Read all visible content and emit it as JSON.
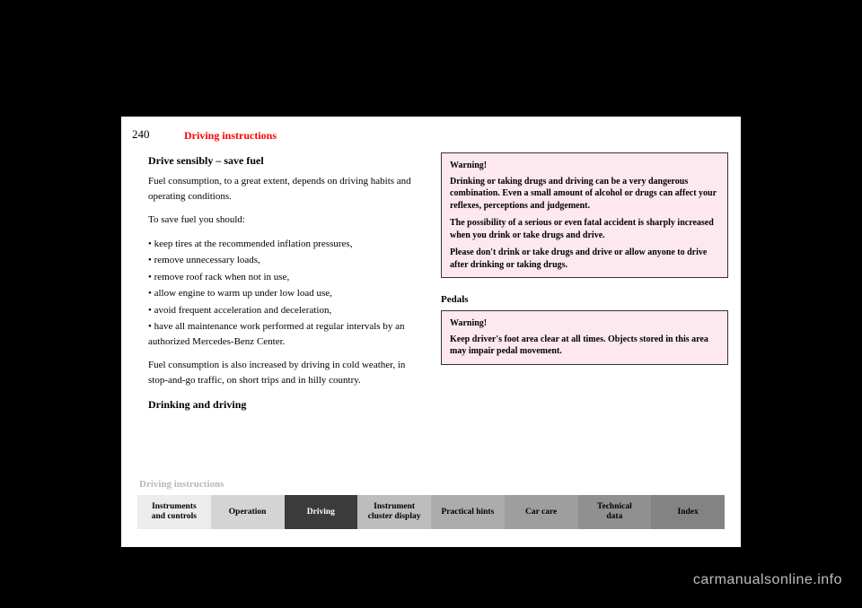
{
  "page_number": "240",
  "header_title": "Driving instructions",
  "left_column": {
    "heading": "Drive sensibly – save fuel",
    "p1": "Fuel consumption, to a great extent, depends on driving habits and operating conditions.",
    "p2": "To save fuel you should:",
    "bullets_intro": "",
    "li1": "• keep tires at the recommended inflation pressures,",
    "li2": "• remove unnecessary loads,",
    "li3": "• remove roof rack when not in use,",
    "li4": "• allow engine to warm up under low load use,",
    "li5": "• avoid frequent acceleration and deceleration,",
    "li6": "• have all maintenance work performed at regular intervals by an authorized Mercedes-Benz Center.",
    "p3": "Fuel consumption is also increased by driving in cold weather, in stop-and-go traffic, on short trips and in hilly country.",
    "h2": "Drinking and driving"
  },
  "warning1": {
    "title": "Warning!",
    "p1": "Drinking or taking drugs and driving can be a very dangerous combination. Even a small amount of alcohol or drugs can affect your reflexes, perceptions and judgement.",
    "p2": "The possibility of a serious or even fatal accident is sharply increased when you drink or take drugs and drive.",
    "p3": "Please don't drink or take drugs and drive or allow anyone to drive after drinking or taking drugs."
  },
  "pedals_title": "Pedals",
  "warning2": {
    "title": "Warning!",
    "p1": "Keep driver's foot area clear at all times. Objects stored in this area may impair pedal movement."
  },
  "footer_label": "Driving instructions",
  "tabs": [
    {
      "label": "Instruments\nand controls",
      "bg": "#ececec"
    },
    {
      "label": "Operation",
      "bg": "#d4d4d4"
    },
    {
      "label": "Driving",
      "bg": "#3b3b3b",
      "fg": "#fff"
    },
    {
      "label": "Instrument\ncluster display",
      "bg": "#bdbdbd"
    },
    {
      "label": "Practical hints",
      "bg": "#acacac"
    },
    {
      "label": "Car care",
      "bg": "#9e9e9e"
    },
    {
      "label": "Technical\ndata",
      "bg": "#909090"
    },
    {
      "label": "Index",
      "bg": "#838383"
    }
  ],
  "watermark": "carmanualsonline.info"
}
